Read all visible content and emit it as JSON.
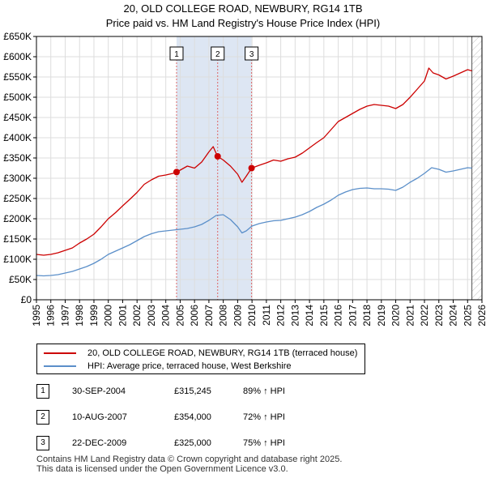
{
  "title_line1": "20, OLD COLLEGE ROAD, NEWBURY, RG14 1TB",
  "title_line2": "Price paid vs. HM Land Registry's House Price Index (HPI)",
  "chart_data": {
    "type": "line",
    "x_range": [
      1995,
      2026
    ],
    "ylim": [
      0,
      650000
    ],
    "y_ticks": [
      0,
      50000,
      100000,
      150000,
      200000,
      250000,
      300000,
      350000,
      400000,
      450000,
      500000,
      550000,
      600000,
      650000
    ],
    "y_tick_labels": [
      "£0",
      "£50K",
      "£100K",
      "£150K",
      "£200K",
      "£250K",
      "£300K",
      "£350K",
      "£400K",
      "£450K",
      "£500K",
      "£550K",
      "£600K",
      "£650K"
    ],
    "x_ticks": [
      1995,
      1996,
      1997,
      1998,
      1999,
      2000,
      2001,
      2002,
      2003,
      2004,
      2005,
      2006,
      2007,
      2008,
      2009,
      2010,
      2011,
      2012,
      2013,
      2014,
      2015,
      2016,
      2017,
      2018,
      2019,
      2020,
      2021,
      2022,
      2023,
      2024,
      2025,
      2026
    ],
    "x_tick_labels": [
      "1995",
      "1996",
      "1997",
      "1998",
      "1999",
      "2000",
      "2001",
      "2002",
      "2003",
      "2004",
      "2005",
      "2006",
      "2007",
      "2008",
      "2009",
      "2010",
      "2011",
      "2012",
      "2013",
      "2014",
      "2015",
      "2016",
      "2017",
      "2018",
      "2019",
      "2020",
      "2021",
      "2022",
      "2023",
      "2024",
      "2025",
      "2026"
    ],
    "grid": true,
    "shaded_regions": [
      [
        2004.75,
        2009.97
      ]
    ],
    "future_hatch_from": 2025.3,
    "series": [
      {
        "name": "20, OLD COLLEGE ROAD, NEWBURY, RG14 1TB (terraced house)",
        "color": "#cc0000",
        "x": [
          1995.0,
          1995.5,
          1996.0,
          1996.5,
          1997.0,
          1997.5,
          1998.0,
          1998.5,
          1999.0,
          1999.5,
          2000.0,
          2000.5,
          2001.0,
          2001.5,
          2002.0,
          2002.5,
          2003.0,
          2003.5,
          2004.0,
          2004.5,
          2004.75,
          2005.0,
          2005.5,
          2006.0,
          2006.5,
          2007.0,
          2007.3,
          2007.6,
          2008.0,
          2008.5,
          2009.0,
          2009.3,
          2009.6,
          2009.97,
          2010.5,
          2011.0,
          2011.5,
          2012.0,
          2012.5,
          2013.0,
          2013.5,
          2014.0,
          2014.5,
          2015.0,
          2015.5,
          2016.0,
          2016.5,
          2017.0,
          2017.5,
          2018.0,
          2018.5,
          2019.0,
          2019.5,
          2020.0,
          2020.5,
          2021.0,
          2021.5,
          2022.0,
          2022.3,
          2022.6,
          2023.0,
          2023.5,
          2024.0,
          2024.5,
          2025.0,
          2025.3
        ],
        "values": [
          112000,
          110000,
          112000,
          116000,
          122000,
          128000,
          140000,
          150000,
          162000,
          180000,
          200000,
          215000,
          232000,
          248000,
          265000,
          285000,
          296000,
          305000,
          308000,
          312000,
          315245,
          320000,
          330000,
          325000,
          340000,
          365000,
          378000,
          354000,
          345000,
          330000,
          310000,
          290000,
          305000,
          325000,
          332000,
          338000,
          345000,
          342000,
          348000,
          352000,
          362000,
          375000,
          388000,
          400000,
          420000,
          440000,
          450000,
          460000,
          470000,
          478000,
          482000,
          480000,
          478000,
          472000,
          482000,
          500000,
          520000,
          540000,
          572000,
          560000,
          555000,
          545000,
          552000,
          560000,
          568000,
          565000
        ]
      },
      {
        "name": "HPI: Average price, terraced house, West Berkshire",
        "color": "#5b8fc9",
        "x": [
          1995.0,
          1995.5,
          1996.0,
          1996.5,
          1997.0,
          1997.5,
          1998.0,
          1998.5,
          1999.0,
          1999.5,
          2000.0,
          2000.5,
          2001.0,
          2001.5,
          2002.0,
          2002.5,
          2003.0,
          2003.5,
          2004.0,
          2004.5,
          2005.0,
          2005.5,
          2006.0,
          2006.5,
          2007.0,
          2007.5,
          2008.0,
          2008.5,
          2009.0,
          2009.3,
          2009.6,
          2010.0,
          2010.5,
          2011.0,
          2011.5,
          2012.0,
          2012.5,
          2013.0,
          2013.5,
          2014.0,
          2014.5,
          2015.0,
          2015.5,
          2016.0,
          2016.5,
          2017.0,
          2017.5,
          2018.0,
          2018.5,
          2019.0,
          2019.5,
          2020.0,
          2020.5,
          2021.0,
          2021.5,
          2022.0,
          2022.5,
          2023.0,
          2023.5,
          2024.0,
          2024.5,
          2025.0,
          2025.3
        ],
        "values": [
          60000,
          59000,
          60000,
          62000,
          66000,
          70000,
          76000,
          82000,
          90000,
          100000,
          112000,
          120000,
          128000,
          136000,
          146000,
          156000,
          163000,
          168000,
          170000,
          172000,
          174000,
          176000,
          180000,
          186000,
          196000,
          208000,
          210000,
          198000,
          180000,
          165000,
          170000,
          182000,
          188000,
          192000,
          195000,
          196000,
          200000,
          204000,
          210000,
          218000,
          228000,
          236000,
          246000,
          258000,
          266000,
          272000,
          275000,
          276000,
          274000,
          274000,
          273000,
          270000,
          278000,
          290000,
          300000,
          312000,
          326000,
          322000,
          315000,
          318000,
          322000,
          326000,
          325000
        ]
      }
    ],
    "sales": [
      {
        "label": "1",
        "x": 2004.75,
        "value": 315245
      },
      {
        "label": "2",
        "x": 2007.61,
        "value": 354000
      },
      {
        "label": "3",
        "x": 2009.97,
        "value": 325000
      }
    ]
  },
  "legend": {
    "property_label": "20, OLD COLLEGE ROAD, NEWBURY, RG14 1TB (terraced house)",
    "hpi_label": "HPI: Average price, terraced house, West Berkshire"
  },
  "sales_table": [
    {
      "num": "1",
      "date": "30-SEP-2004",
      "price": "£315,245",
      "hpi": "89% ↑ HPI"
    },
    {
      "num": "2",
      "date": "10-AUG-2007",
      "price": "£354,000",
      "hpi": "72% ↑ HPI"
    },
    {
      "num": "3",
      "date": "22-DEC-2009",
      "price": "£325,000",
      "hpi": "75% ↑ HPI"
    }
  ],
  "footer": {
    "line1": "Contains HM Land Registry data © Crown copyright and database right 2025.",
    "line2": "This data is licensed under the Open Government Licence v3.0."
  }
}
